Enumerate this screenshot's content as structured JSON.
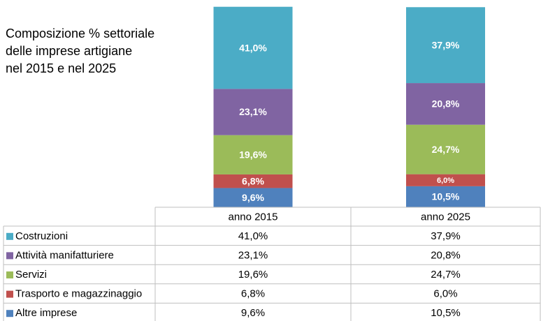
{
  "chart_data": {
    "type": "stacked_bar",
    "title": "Composizione % settoriale\ndelle imprese artigiane\nnel 2015 e nel 2025",
    "categories": [
      "anno 2015",
      "anno 2025"
    ],
    "ylim": [
      0,
      100
    ],
    "series": [
      {
        "name": "Costruzioni",
        "color": "#4bacc6",
        "values": [
          41.0,
          37.9
        ],
        "value_labels": [
          "41,0%",
          "37,9%"
        ]
      },
      {
        "name": "Attività manifatturiere",
        "color": "#8064a2",
        "values": [
          23.1,
          20.8
        ],
        "value_labels": [
          "23,1%",
          "20,8%"
        ]
      },
      {
        "name": "Servizi",
        "color": "#9bbb59",
        "values": [
          19.6,
          24.7
        ],
        "value_labels": [
          "19,6%",
          "24,7%"
        ]
      },
      {
        "name": "Trasporto e magazzinaggio",
        "color": "#c0504d",
        "values": [
          6.8,
          6.0
        ],
        "value_labels": [
          "6,8%",
          "6,0%"
        ]
      },
      {
        "name": "Altre imprese",
        "color": "#4f81bd",
        "values": [
          9.6,
          10.5
        ],
        "value_labels": [
          "9,6%",
          "10,5%"
        ]
      }
    ]
  }
}
